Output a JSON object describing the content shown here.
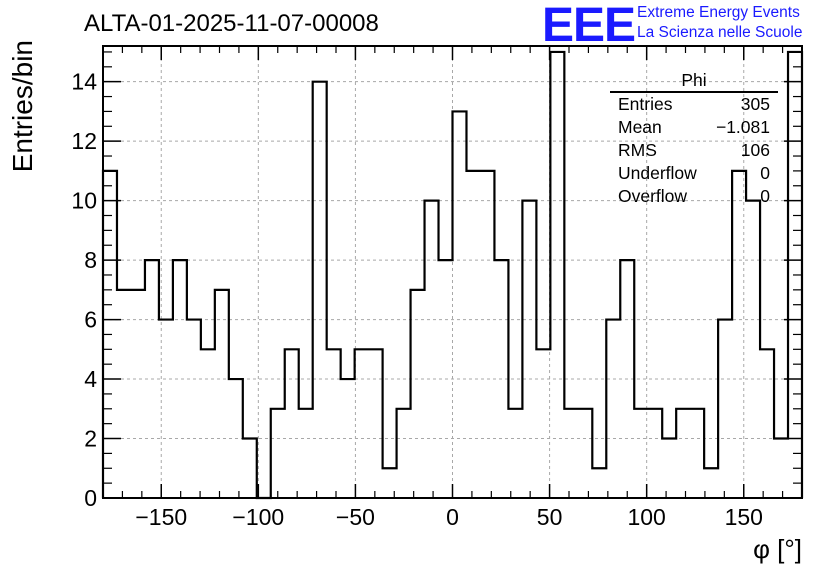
{
  "window_title": "ALTA-01-2025-11-07-00008",
  "logo": {
    "mark": "EEE",
    "line1": "Extreme Energy Events",
    "line2": "La Scienza nelle Scuole",
    "color": "#1a1aff"
  },
  "stats_box": {
    "title": "Phi",
    "rows": [
      {
        "label": "Entries",
        "value": "305"
      },
      {
        "label": "Mean",
        "value": "−1.081"
      },
      {
        "label": "RMS",
        "value": "106"
      },
      {
        "label": "Underflow",
        "value": "0"
      },
      {
        "label": "Overflow",
        "value": "0"
      }
    ]
  },
  "chart_data": {
    "type": "histogram",
    "title": "ALTA-01-2025-11-07-00008",
    "xlabel": "φ [°]",
    "ylabel": "Entries/bin",
    "xlim": [
      -180,
      180
    ],
    "ylim": [
      0,
      15.2
    ],
    "bin_width": 7.2,
    "xticks": [
      -150,
      -100,
      -50,
      0,
      50,
      100,
      150
    ],
    "yticks": [
      0,
      2,
      4,
      6,
      8,
      10,
      12,
      14
    ],
    "grid": true,
    "values": [
      11,
      7,
      7,
      8,
      6,
      8,
      6,
      5,
      7,
      4,
      2,
      0,
      3,
      5,
      3,
      14,
      5,
      4,
      5,
      5,
      1,
      3,
      7,
      10,
      8,
      13,
      11,
      11,
      8,
      3,
      10,
      5,
      15,
      3,
      3,
      1,
      6,
      8,
      3,
      3,
      2,
      3,
      3,
      1,
      6,
      11,
      10,
      5,
      2,
      15
    ],
    "line_color": "#000000"
  }
}
